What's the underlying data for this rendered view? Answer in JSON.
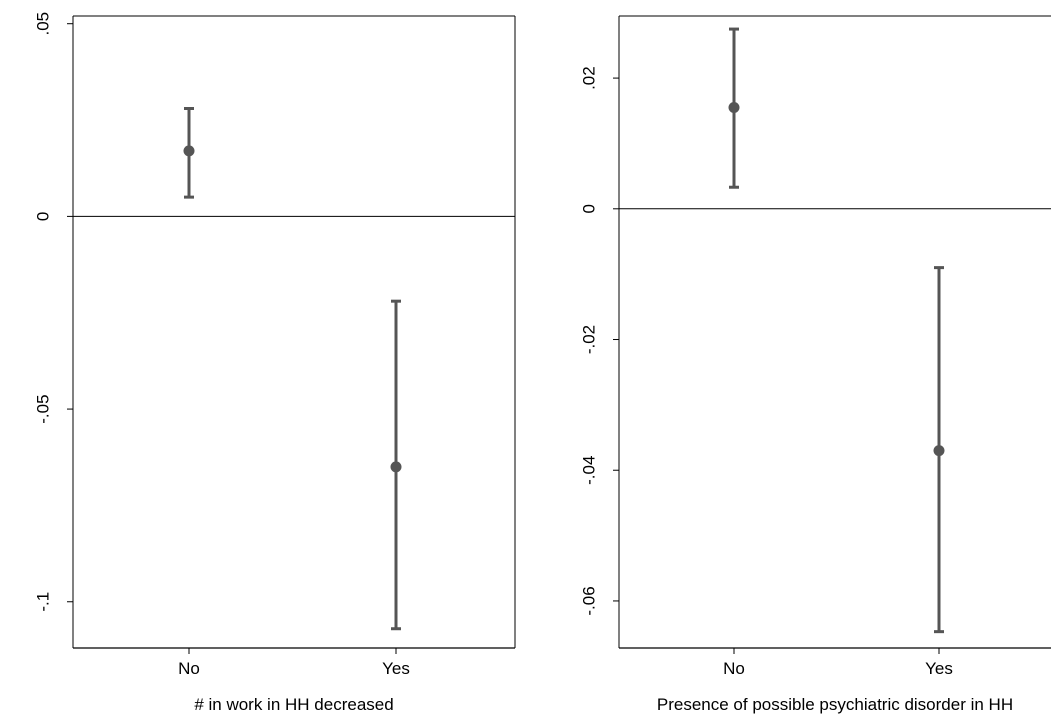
{
  "chart_data": [
    {
      "type": "scatter",
      "subtype": "point-with-error-bars",
      "title": "",
      "xlabel": "# in work in HH decreased",
      "ylabel": "",
      "categories": [
        "No",
        "Yes"
      ],
      "series": [
        {
          "values": [
            0.017,
            -0.065
          ],
          "ci_low": [
            0.005,
            -0.107
          ],
          "ci_high": [
            0.028,
            -0.022
          ]
        }
      ],
      "ylim": [
        -0.112,
        0.052
      ],
      "yticks": [
        0.05,
        0,
        -0.05,
        -0.1
      ],
      "ytick_labels": [
        ".05",
        "0",
        "-.05",
        "-.1"
      ],
      "reference_line": 0,
      "grid": false,
      "colors": {
        "marker": "#555555",
        "axis": "#000000"
      }
    },
    {
      "type": "scatter",
      "subtype": "point-with-error-bars",
      "title": "",
      "xlabel": "Presence of possible psychiatric disorder in HH",
      "ylabel": "",
      "categories": [
        "No",
        "Yes"
      ],
      "series": [
        {
          "values": [
            0.0155,
            -0.037
          ],
          "ci_low": [
            0.0033,
            -0.0647
          ],
          "ci_high": [
            0.0275,
            -0.009
          ]
        }
      ],
      "ylim": [
        -0.0672,
        0.0295
      ],
      "yticks": [
        0.02,
        0,
        -0.02,
        -0.04,
        -0.06
      ],
      "ytick_labels": [
        ".02",
        "0",
        "-.02",
        "-.04",
        "-.06"
      ],
      "reference_line": 0,
      "grid": false,
      "colors": {
        "marker": "#555555",
        "axis": "#000000"
      }
    }
  ]
}
